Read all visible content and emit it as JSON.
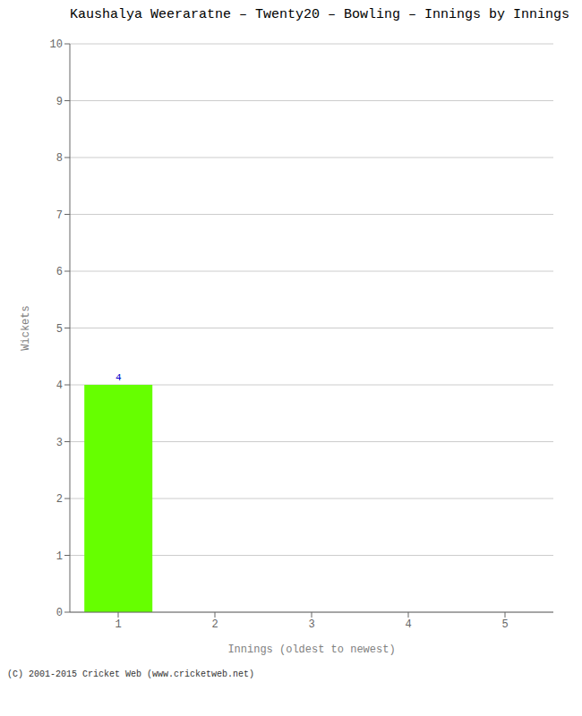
{
  "chart_data": {
    "type": "bar",
    "title": "Kaushalya Weeraratne – Twenty20 – Bowling – Innings by Innings",
    "xlabel": "Innings (oldest to newest)",
    "ylabel": "Wickets",
    "categories": [
      1,
      2,
      3,
      4,
      5
    ],
    "values": [
      4,
      0,
      0,
      0,
      0
    ],
    "color": "#66ff00",
    "ylim": [
      0,
      10
    ],
    "yticks": [
      0,
      1,
      2,
      3,
      4,
      5,
      6,
      7,
      8,
      9,
      10
    ],
    "grid": true,
    "data_labels": true,
    "annotations": [
      "(C) 2001-2015 Cricket Web (www.cricketweb.net)"
    ]
  }
}
